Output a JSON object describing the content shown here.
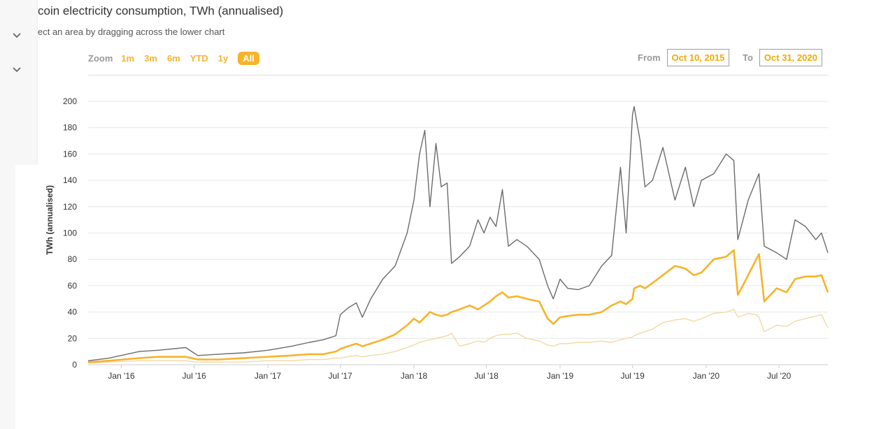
{
  "title": "coin electricity consumption, TWh (annualised)",
  "subtitle": "ect an area by dragging across the lower chart",
  "sidebar": {
    "icons": [
      "chevron-down-icon",
      "chevron-down-icon"
    ]
  },
  "range_selector": {
    "zoom_label": "Zoom",
    "buttons": [
      "1m",
      "3m",
      "6m",
      "YTD",
      "1y",
      "All"
    ],
    "active": "All",
    "from_label": "From",
    "from_value": "Oct 10, 2015",
    "to_label": "To",
    "to_value": "Oct 31, 2020"
  },
  "colors": {
    "accent": "#f7b32b",
    "series_max": "#6b6b6b",
    "series_estimate": "#f7b32b",
    "series_min": "#f3d9a4",
    "grid": "#e6e6e6"
  },
  "chart_data": {
    "type": "line",
    "ylabel": "TWh (annualised)",
    "ylim": [
      0,
      200
    ],
    "yticks": [
      0,
      20,
      40,
      60,
      80,
      100,
      120,
      140,
      160,
      180,
      200
    ],
    "xlim": [
      "2015-10-10",
      "2020-10-31"
    ],
    "xticks": [
      {
        "date": "2016-01-01",
        "label": "Jan '16"
      },
      {
        "date": "2016-07-01",
        "label": "Jul '16"
      },
      {
        "date": "2017-01-01",
        "label": "Jan '17"
      },
      {
        "date": "2017-07-01",
        "label": "Jul '17"
      },
      {
        "date": "2018-01-01",
        "label": "Jan '18"
      },
      {
        "date": "2018-07-01",
        "label": "Jul '18"
      },
      {
        "date": "2019-01-01",
        "label": "Jan '19"
      },
      {
        "date": "2019-07-01",
        "label": "Jul '19"
      },
      {
        "date": "2020-01-01",
        "label": "Jan '20"
      },
      {
        "date": "2020-07-01",
        "label": "Jul '20"
      }
    ],
    "grid": true,
    "legend": "none",
    "series": [
      {
        "color": "#6b6b6b",
        "points": [
          [
            "2015-10-10",
            3
          ],
          [
            "2015-12-01",
            5
          ],
          [
            "2016-02-15",
            10
          ],
          [
            "2016-04-01",
            11
          ],
          [
            "2016-06-10",
            13
          ],
          [
            "2016-07-10",
            7
          ],
          [
            "2016-09-01",
            8
          ],
          [
            "2016-11-01",
            9
          ],
          [
            "2017-01-01",
            11
          ],
          [
            "2017-03-01",
            14
          ],
          [
            "2017-04-15",
            17
          ],
          [
            "2017-05-20",
            19
          ],
          [
            "2017-06-20",
            22
          ],
          [
            "2017-07-01",
            38
          ],
          [
            "2017-07-20",
            43
          ],
          [
            "2017-08-10",
            47
          ],
          [
            "2017-08-25",
            36
          ],
          [
            "2017-09-15",
            50
          ],
          [
            "2017-10-15",
            65
          ],
          [
            "2017-11-15",
            75
          ],
          [
            "2017-12-15",
            100
          ],
          [
            "2018-01-01",
            125
          ],
          [
            "2018-01-15",
            160
          ],
          [
            "2018-01-28",
            178
          ],
          [
            "2018-02-10",
            120
          ],
          [
            "2018-02-25",
            168
          ],
          [
            "2018-03-10",
            135
          ],
          [
            "2018-03-25",
            138
          ],
          [
            "2018-04-05",
            77
          ],
          [
            "2018-04-25",
            82
          ],
          [
            "2018-05-20",
            90
          ],
          [
            "2018-06-10",
            110
          ],
          [
            "2018-06-25",
            100
          ],
          [
            "2018-07-10",
            112
          ],
          [
            "2018-07-25",
            105
          ],
          [
            "2018-08-10",
            133
          ],
          [
            "2018-08-25",
            90
          ],
          [
            "2018-09-15",
            95
          ],
          [
            "2018-10-10",
            90
          ],
          [
            "2018-11-10",
            80
          ],
          [
            "2018-12-01",
            60
          ],
          [
            "2018-12-15",
            50
          ],
          [
            "2019-01-01",
            65
          ],
          [
            "2019-01-20",
            58
          ],
          [
            "2019-02-15",
            57
          ],
          [
            "2019-03-15",
            60
          ],
          [
            "2019-04-15",
            75
          ],
          [
            "2019-05-10",
            83
          ],
          [
            "2019-06-01",
            150
          ],
          [
            "2019-06-15",
            100
          ],
          [
            "2019-07-01",
            190
          ],
          [
            "2019-07-05",
            196
          ],
          [
            "2019-07-20",
            170
          ],
          [
            "2019-08-01",
            135
          ],
          [
            "2019-08-20",
            140
          ],
          [
            "2019-09-15",
            165
          ],
          [
            "2019-10-15",
            125
          ],
          [
            "2019-11-10",
            150
          ],
          [
            "2019-12-01",
            120
          ],
          [
            "2019-12-20",
            140
          ],
          [
            "2020-01-20",
            145
          ],
          [
            "2020-02-20",
            160
          ],
          [
            "2020-03-10",
            155
          ],
          [
            "2020-03-20",
            95
          ],
          [
            "2020-04-15",
            125
          ],
          [
            "2020-05-05",
            140
          ],
          [
            "2020-05-12",
            145
          ],
          [
            "2020-05-25",
            90
          ],
          [
            "2020-06-25",
            85
          ],
          [
            "2020-07-20",
            80
          ],
          [
            "2020-08-10",
            110
          ],
          [
            "2020-09-05",
            105
          ],
          [
            "2020-10-01",
            95
          ],
          [
            "2020-10-15",
            100
          ],
          [
            "2020-10-31",
            85
          ]
        ]
      },
      {
        "color": "#f7b32b",
        "points": [
          [
            "2015-10-10",
            2
          ],
          [
            "2015-12-01",
            3
          ],
          [
            "2016-02-15",
            5
          ],
          [
            "2016-04-01",
            6
          ],
          [
            "2016-06-10",
            6
          ],
          [
            "2016-07-10",
            4
          ],
          [
            "2016-09-01",
            4
          ],
          [
            "2016-11-01",
            5
          ],
          [
            "2017-01-01",
            6
          ],
          [
            "2017-03-01",
            7
          ],
          [
            "2017-04-15",
            8
          ],
          [
            "2017-05-20",
            8
          ],
          [
            "2017-06-20",
            10
          ],
          [
            "2017-07-01",
            12
          ],
          [
            "2017-07-20",
            14
          ],
          [
            "2017-08-10",
            16
          ],
          [
            "2017-08-25",
            14
          ],
          [
            "2017-09-15",
            16
          ],
          [
            "2017-10-15",
            19
          ],
          [
            "2017-11-15",
            23
          ],
          [
            "2017-12-15",
            30
          ],
          [
            "2018-01-01",
            35
          ],
          [
            "2018-01-15",
            32
          ],
          [
            "2018-01-28",
            36
          ],
          [
            "2018-02-10",
            40
          ],
          [
            "2018-02-25",
            38
          ],
          [
            "2018-03-10",
            37
          ],
          [
            "2018-03-25",
            38
          ],
          [
            "2018-04-05",
            40
          ],
          [
            "2018-04-25",
            42
          ],
          [
            "2018-05-20",
            45
          ],
          [
            "2018-06-10",
            42
          ],
          [
            "2018-06-25",
            45
          ],
          [
            "2018-07-10",
            48
          ],
          [
            "2018-07-25",
            52
          ],
          [
            "2018-08-10",
            55
          ],
          [
            "2018-08-25",
            51
          ],
          [
            "2018-09-15",
            52
          ],
          [
            "2018-10-10",
            50
          ],
          [
            "2018-11-10",
            48
          ],
          [
            "2018-12-01",
            35
          ],
          [
            "2018-12-15",
            31
          ],
          [
            "2019-01-01",
            36
          ],
          [
            "2019-01-20",
            37
          ],
          [
            "2019-02-15",
            38
          ],
          [
            "2019-03-15",
            38
          ],
          [
            "2019-04-15",
            40
          ],
          [
            "2019-05-10",
            45
          ],
          [
            "2019-06-01",
            48
          ],
          [
            "2019-06-15",
            46
          ],
          [
            "2019-07-01",
            50
          ],
          [
            "2019-07-05",
            58
          ],
          [
            "2019-07-20",
            60
          ],
          [
            "2019-08-01",
            58
          ],
          [
            "2019-08-20",
            62
          ],
          [
            "2019-09-15",
            68
          ],
          [
            "2019-10-15",
            75
          ],
          [
            "2019-11-10",
            73
          ],
          [
            "2019-12-01",
            68
          ],
          [
            "2019-12-20",
            70
          ],
          [
            "2020-01-20",
            80
          ],
          [
            "2020-02-20",
            82
          ],
          [
            "2020-03-10",
            87
          ],
          [
            "2020-03-20",
            53
          ],
          [
            "2020-04-15",
            68
          ],
          [
            "2020-05-05",
            80
          ],
          [
            "2020-05-12",
            84
          ],
          [
            "2020-05-25",
            48
          ],
          [
            "2020-06-25",
            58
          ],
          [
            "2020-07-20",
            55
          ],
          [
            "2020-08-10",
            65
          ],
          [
            "2020-09-05",
            67
          ],
          [
            "2020-10-01",
            67
          ],
          [
            "2020-10-15",
            68
          ],
          [
            "2020-10-31",
            55
          ]
        ]
      },
      {
        "color": "#f3d9a4",
        "points": [
          [
            "2015-10-10",
            1
          ],
          [
            "2015-12-01",
            2
          ],
          [
            "2016-02-15",
            3
          ],
          [
            "2016-04-01",
            3
          ],
          [
            "2016-06-10",
            3
          ],
          [
            "2016-07-10",
            2
          ],
          [
            "2016-09-01",
            2
          ],
          [
            "2016-11-01",
            2
          ],
          [
            "2017-01-01",
            3
          ],
          [
            "2017-03-01",
            3
          ],
          [
            "2017-04-15",
            4
          ],
          [
            "2017-05-20",
            4
          ],
          [
            "2017-06-20",
            5
          ],
          [
            "2017-07-01",
            5
          ],
          [
            "2017-07-20",
            6
          ],
          [
            "2017-08-10",
            7
          ],
          [
            "2017-08-25",
            6
          ],
          [
            "2017-09-15",
            7
          ],
          [
            "2017-10-15",
            8
          ],
          [
            "2017-11-15",
            10
          ],
          [
            "2017-12-15",
            13
          ],
          [
            "2018-01-01",
            15
          ],
          [
            "2018-01-15",
            17
          ],
          [
            "2018-01-28",
            18
          ],
          [
            "2018-02-10",
            19
          ],
          [
            "2018-02-25",
            20
          ],
          [
            "2018-03-10",
            21
          ],
          [
            "2018-03-25",
            22
          ],
          [
            "2018-04-05",
            24
          ],
          [
            "2018-04-25",
            14
          ],
          [
            "2018-05-20",
            16
          ],
          [
            "2018-06-10",
            18
          ],
          [
            "2018-06-25",
            17
          ],
          [
            "2018-07-10",
            20
          ],
          [
            "2018-07-25",
            22
          ],
          [
            "2018-08-10",
            23
          ],
          [
            "2018-08-25",
            23
          ],
          [
            "2018-09-15",
            24
          ],
          [
            "2018-10-10",
            20
          ],
          [
            "2018-11-10",
            18
          ],
          [
            "2018-12-01",
            15
          ],
          [
            "2018-12-15",
            14
          ],
          [
            "2019-01-01",
            16
          ],
          [
            "2019-01-20",
            16
          ],
          [
            "2019-02-15",
            17
          ],
          [
            "2019-03-15",
            17
          ],
          [
            "2019-04-15",
            18
          ],
          [
            "2019-05-10",
            17
          ],
          [
            "2019-06-01",
            19
          ],
          [
            "2019-06-15",
            20
          ],
          [
            "2019-07-01",
            21
          ],
          [
            "2019-07-05",
            22
          ],
          [
            "2019-07-20",
            24
          ],
          [
            "2019-08-01",
            25
          ],
          [
            "2019-08-20",
            27
          ],
          [
            "2019-09-15",
            32
          ],
          [
            "2019-10-15",
            34
          ],
          [
            "2019-11-10",
            35
          ],
          [
            "2019-12-01",
            33
          ],
          [
            "2019-12-20",
            35
          ],
          [
            "2020-01-20",
            39
          ],
          [
            "2020-02-20",
            40
          ],
          [
            "2020-03-10",
            42
          ],
          [
            "2020-03-20",
            36
          ],
          [
            "2020-04-15",
            39
          ],
          [
            "2020-05-05",
            38
          ],
          [
            "2020-05-12",
            36
          ],
          [
            "2020-05-25",
            25
          ],
          [
            "2020-06-25",
            30
          ],
          [
            "2020-07-20",
            29
          ],
          [
            "2020-08-10",
            33
          ],
          [
            "2020-09-05",
            35
          ],
          [
            "2020-10-01",
            37
          ],
          [
            "2020-10-15",
            38
          ],
          [
            "2020-10-31",
            28
          ]
        ]
      }
    ]
  }
}
